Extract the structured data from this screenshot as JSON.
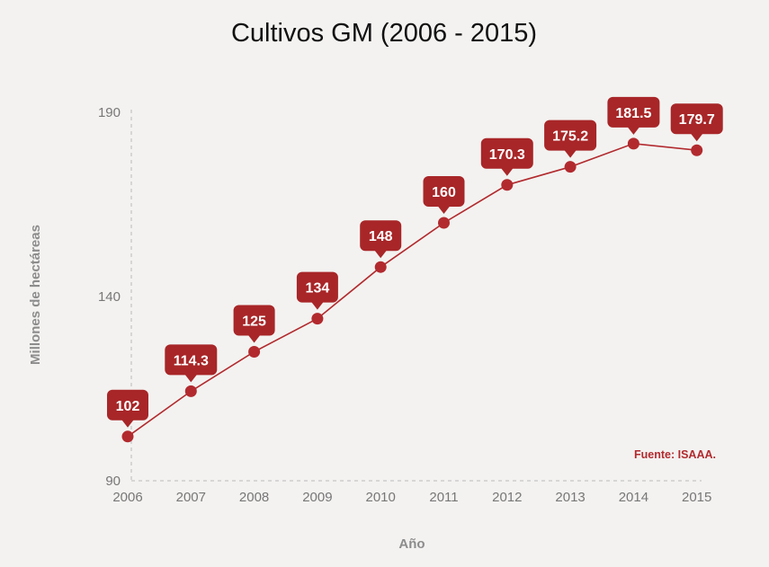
{
  "colors": {
    "series": "#b22a2e",
    "label_bg": "#a82628",
    "axis": "#c6c6c6",
    "tick_text": "#777777",
    "axis_title": "#8c8c8c",
    "source": "#b22a2e"
  },
  "chart_data": {
    "type": "line",
    "title": "Cultivos GM (2006 - 2015)",
    "xlabel": "Año",
    "ylabel": "Millones de hectáreas",
    "x": [
      "2006",
      "2007",
      "2008",
      "2009",
      "2010",
      "2011",
      "2012",
      "2013",
      "2014",
      "2015"
    ],
    "series": [
      {
        "values": [
          102,
          114.3,
          125,
          134,
          148,
          160,
          170.3,
          175.2,
          181.5,
          179.7
        ],
        "labels": [
          "102",
          "114.3",
          "125",
          "134",
          "148",
          "160",
          "170.3",
          "175.2",
          "181.5",
          "179.7"
        ]
      }
    ],
    "ylim": [
      90,
      190
    ],
    "yticks": [
      "90",
      "140",
      "190"
    ],
    "source": "Fuente: ISAAA.",
    "grid": false,
    "legend": "none"
  }
}
